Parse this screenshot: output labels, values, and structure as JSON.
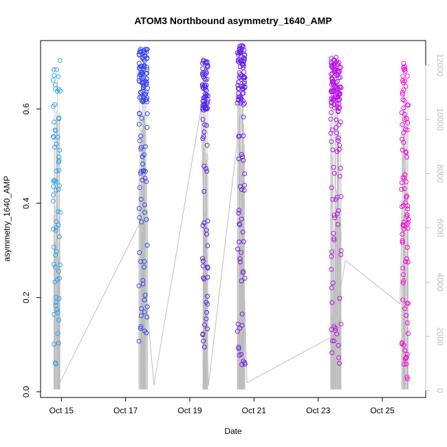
{
  "chart_data": {
    "type": "scatter",
    "title": "ATOM3 Northbound asymmetry_1640_AMP",
    "xlabel": "Date",
    "ylabel": "asymmetry_1640_AMP",
    "y_ticks": [
      "0.0",
      "0.2",
      "0.4",
      "0.6"
    ],
    "y2_ticks": [
      "0",
      "2000",
      "4000",
      "6000",
      "8000",
      "10000",
      "12000"
    ],
    "x_ticks": [
      "Oct 15",
      "Oct 17",
      "Oct 19",
      "Oct 21",
      "Oct 23",
      "Oct 25"
    ],
    "x_tick_days": [
      15,
      17,
      19,
      21,
      23,
      25
    ],
    "ylim": [
      -0.012,
      0.745
    ],
    "y2lim": [
      -250,
      12900
    ],
    "xlim": [
      14.35,
      26.35
    ],
    "grid": false,
    "point_color_gradient": [
      "#2aa7f0",
      "#3b24e8",
      "#8a1fe8",
      "#ff00dd"
    ],
    "clusters": [
      {
        "day": 14.85,
        "spread": 0.22,
        "y_min": 0.055,
        "y_max": 0.71,
        "n": 70,
        "dense_top": false
      },
      {
        "day": 17.55,
        "spread": 0.27,
        "y_min": 0.09,
        "y_max": 0.73,
        "n": 130,
        "dense_top": true
      },
      {
        "day": 19.48,
        "spread": 0.17,
        "y_min": 0.085,
        "y_max": 0.71,
        "n": 95,
        "dense_top": true
      },
      {
        "day": 20.6,
        "spread": 0.25,
        "y_min": 0.05,
        "y_max": 0.735,
        "n": 120,
        "dense_top": true
      },
      {
        "day": 23.55,
        "spread": 0.33,
        "y_min": 0.055,
        "y_max": 0.71,
        "n": 150,
        "dense_top": true
      },
      {
        "day": 25.7,
        "spread": 0.22,
        "y_min": 0.01,
        "y_max": 0.7,
        "n": 90,
        "dense_top": false
      }
    ],
    "secondary_series": {
      "color": "#bdbdbd",
      "y2_min": 50,
      "connecting_path": [
        [
          14.95,
          300
        ],
        [
          17.45,
          6200
        ],
        [
          17.88,
          200
        ],
        [
          19.35,
          10400
        ],
        [
          19.58,
          200
        ],
        [
          20.55,
          9900
        ],
        [
          20.78,
          300
        ],
        [
          23.45,
          2000
        ],
        [
          23.85,
          4800
        ],
        [
          25.55,
          3200
        ],
        [
          25.68,
          10500
        ]
      ]
    }
  }
}
